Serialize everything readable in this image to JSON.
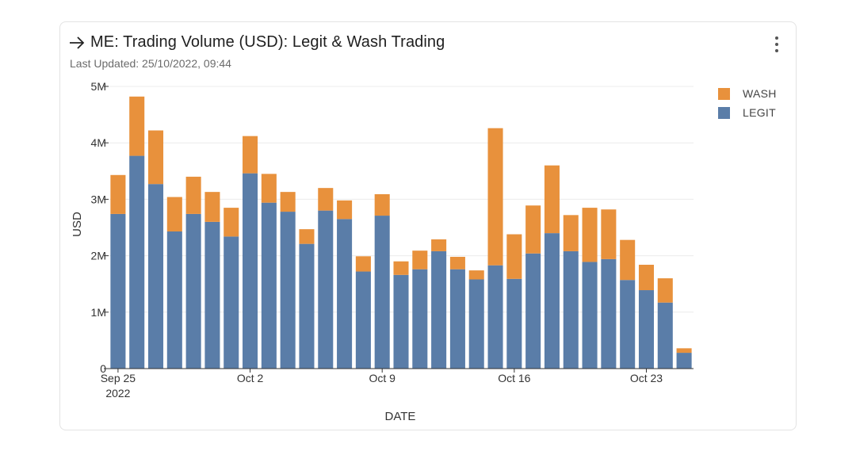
{
  "card": {
    "title": "ME: Trading Volume (USD): Legit & Wash Trading",
    "last_updated": "Last Updated: 25/10/2022, 09:44"
  },
  "colors": {
    "wash": "#E8913C",
    "legit": "#5A7DA8",
    "grid": "#ececec",
    "axis": "#333333"
  },
  "chart_data": {
    "type": "bar",
    "stacked": true,
    "title": "ME: Trading Volume (USD): Legit & Wash Trading",
    "xlabel": "DATE",
    "ylabel": "USD",
    "ylim": [
      0,
      5000000
    ],
    "y_ticks": [
      {
        "value": 0,
        "label": "0"
      },
      {
        "value": 1000000,
        "label": "1M"
      },
      {
        "value": 2000000,
        "label": "2M"
      },
      {
        "value": 3000000,
        "label": "3M"
      },
      {
        "value": 4000000,
        "label": "4M"
      },
      {
        "value": 5000000,
        "label": "5M"
      }
    ],
    "x_ticks": [
      {
        "index": 0,
        "label": "Sep 25",
        "sublabel": "2022"
      },
      {
        "index": 7,
        "label": "Oct 2",
        "sublabel": ""
      },
      {
        "index": 14,
        "label": "Oct 9",
        "sublabel": ""
      },
      {
        "index": 21,
        "label": "Oct 16",
        "sublabel": ""
      },
      {
        "index": 28,
        "label": "Oct 23",
        "sublabel": ""
      }
    ],
    "categories": [
      "2022-09-25",
      "2022-09-26",
      "2022-09-27",
      "2022-09-28",
      "2022-09-29",
      "2022-09-30",
      "2022-10-01",
      "2022-10-02",
      "2022-10-03",
      "2022-10-04",
      "2022-10-05",
      "2022-10-06",
      "2022-10-07",
      "2022-10-08",
      "2022-10-09",
      "2022-10-10",
      "2022-10-11",
      "2022-10-12",
      "2022-10-13",
      "2022-10-14",
      "2022-10-15",
      "2022-10-16",
      "2022-10-17",
      "2022-10-18",
      "2022-10-19",
      "2022-10-20",
      "2022-10-21",
      "2022-10-22",
      "2022-10-23",
      "2022-10-24",
      "2022-10-25"
    ],
    "legend_position": "right",
    "series": [
      {
        "name": "LEGIT",
        "values": [
          2740000,
          3770000,
          3270000,
          2430000,
          2740000,
          2600000,
          2340000,
          3460000,
          2940000,
          2780000,
          2210000,
          2800000,
          2650000,
          1720000,
          2710000,
          1660000,
          1760000,
          2080000,
          1760000,
          1580000,
          1830000,
          1590000,
          2040000,
          2400000,
          2080000,
          1890000,
          1940000,
          1570000,
          1390000,
          1170000,
          280000
        ]
      },
      {
        "name": "WASH",
        "values": [
          690000,
          1050000,
          950000,
          610000,
          660000,
          530000,
          510000,
          660000,
          510000,
          350000,
          260000,
          400000,
          330000,
          270000,
          380000,
          240000,
          330000,
          210000,
          220000,
          160000,
          2430000,
          790000,
          850000,
          1200000,
          640000,
          960000,
          880000,
          710000,
          450000,
          430000,
          80000
        ]
      }
    ]
  }
}
